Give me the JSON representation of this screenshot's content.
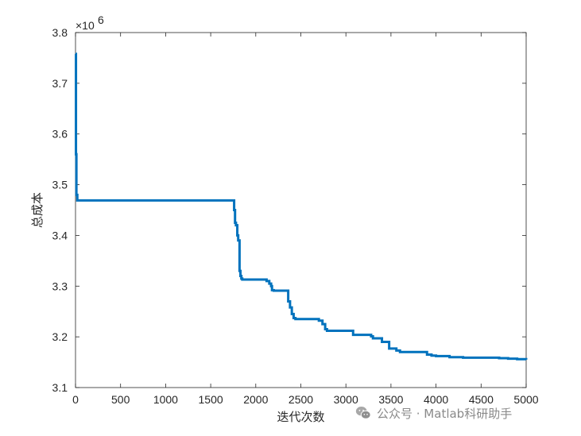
{
  "chart_data": {
    "type": "line",
    "title": "",
    "xlabel": "迭代次数",
    "ylabel": "总成本",
    "xlim": [
      0,
      5000
    ],
    "ylim": [
      3.1,
      3.8
    ],
    "y_multiplier": "×10",
    "y_exponent": "6",
    "xticks": [
      0,
      500,
      1000,
      1500,
      2000,
      2500,
      3000,
      3500,
      4000,
      4500,
      5000
    ],
    "yticks": [
      3.1,
      3.2,
      3.3,
      3.4,
      3.5,
      3.6,
      3.7,
      3.8
    ],
    "ytick_labels": [
      "3.1",
      "3.2",
      "3.3",
      "3.4",
      "3.5",
      "3.6",
      "3.7",
      "3.8"
    ],
    "grid": false,
    "legend": "none",
    "series": [
      {
        "color": "#0072BD",
        "x": [
          0,
          5,
          10,
          20,
          1750,
          1760,
          1770,
          1780,
          1795,
          1805,
          1820,
          1830,
          1840,
          1850,
          2100,
          2120,
          2150,
          2170,
          2180,
          2200,
          2340,
          2360,
          2380,
          2400,
          2420,
          2440,
          2650,
          2700,
          2740,
          2770,
          2790,
          3000,
          3080,
          3250,
          3280,
          3300,
          3400,
          3480,
          3560,
          3600,
          3800,
          3900,
          3950,
          4000,
          4150,
          4300,
          4600,
          4700,
          4800,
          4900,
          5000
        ],
        "y": [
          3.758,
          3.56,
          3.48,
          3.469,
          3.469,
          3.45,
          3.425,
          3.42,
          3.4,
          3.39,
          3.33,
          3.32,
          3.315,
          3.313,
          3.313,
          3.31,
          3.305,
          3.3,
          3.292,
          3.291,
          3.291,
          3.27,
          3.258,
          3.245,
          3.237,
          3.235,
          3.235,
          3.232,
          3.225,
          3.215,
          3.212,
          3.212,
          3.204,
          3.204,
          3.201,
          3.197,
          3.19,
          3.177,
          3.173,
          3.17,
          3.17,
          3.165,
          3.163,
          3.162,
          3.16,
          3.159,
          3.159,
          3.158,
          3.157,
          3.156,
          3.155
        ]
      }
    ]
  },
  "watermark": {
    "icon": "wechat-icon",
    "text": "公众号 · Matlab科研助手"
  }
}
